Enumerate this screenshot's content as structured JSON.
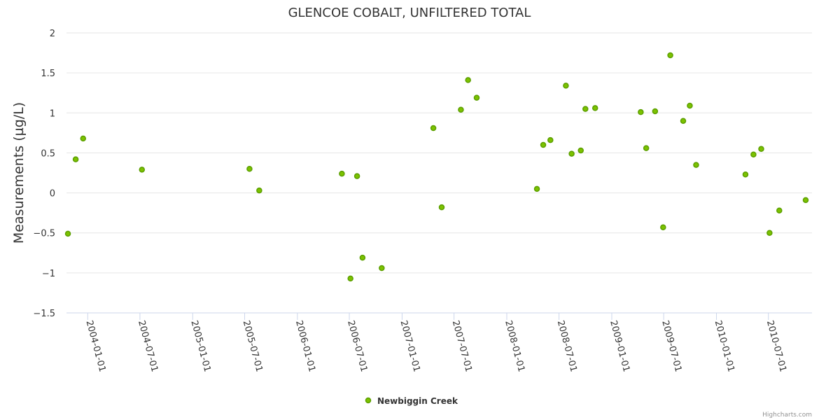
{
  "credits": "Highcharts.com",
  "chart_data": {
    "type": "scatter",
    "title": "GLENCOE COBALT, UNFILTERED TOTAL",
    "ylabel": "Measurements (µg/L)",
    "xlabel": "",
    "ylim": [
      -1.5,
      2
    ],
    "yticks": [
      -1.5,
      -1,
      -0.5,
      0,
      0.5,
      1,
      1.5,
      2
    ],
    "ytick_labels": [
      "−1.5",
      "−1",
      "−0.5",
      "0",
      "0.5",
      "1",
      "1.5",
      "2"
    ],
    "xlim": [
      "2003-10-19",
      "2010-11-30"
    ],
    "xticks": [
      "2004-01-01",
      "2004-07-01",
      "2005-01-01",
      "2005-07-01",
      "2006-01-01",
      "2006-07-01",
      "2007-01-01",
      "2007-07-01",
      "2008-01-01",
      "2008-07-01",
      "2009-01-01",
      "2009-07-01",
      "2010-01-01",
      "2010-07-01"
    ],
    "grid": true,
    "legend_position": "bottom-center",
    "marker_color": "#5b9e00",
    "marker_fill": "#7cc200",
    "series": [
      {
        "name": "Newbiggin Creek",
        "points": [
          {
            "x": "2003-10-24",
            "y": -0.51
          },
          {
            "x": "2003-11-20",
            "y": 0.42
          },
          {
            "x": "2003-12-16",
            "y": 0.68
          },
          {
            "x": "2004-07-08",
            "y": 0.29
          },
          {
            "x": "2005-07-18",
            "y": 0.3
          },
          {
            "x": "2005-08-21",
            "y": 0.03
          },
          {
            "x": "2006-06-05",
            "y": 0.24
          },
          {
            "x": "2006-07-05",
            "y": -1.07
          },
          {
            "x": "2006-07-28",
            "y": 0.21
          },
          {
            "x": "2006-08-16",
            "y": -0.81
          },
          {
            "x": "2006-10-22",
            "y": -0.94
          },
          {
            "x": "2007-04-20",
            "y": 0.81
          },
          {
            "x": "2007-05-19",
            "y": -0.18
          },
          {
            "x": "2007-07-25",
            "y": 1.04
          },
          {
            "x": "2007-08-19",
            "y": 1.41
          },
          {
            "x": "2007-09-18",
            "y": 1.19
          },
          {
            "x": "2008-04-15",
            "y": 0.05
          },
          {
            "x": "2008-05-07",
            "y": 0.6
          },
          {
            "x": "2008-06-01",
            "y": 0.66
          },
          {
            "x": "2008-07-25",
            "y": 1.34
          },
          {
            "x": "2008-08-14",
            "y": 0.49
          },
          {
            "x": "2008-09-15",
            "y": 0.53
          },
          {
            "x": "2008-10-01",
            "y": 1.05
          },
          {
            "x": "2008-11-04",
            "y": 1.06
          },
          {
            "x": "2009-04-12",
            "y": 1.01
          },
          {
            "x": "2009-05-01",
            "y": 0.56
          },
          {
            "x": "2009-06-01",
            "y": 1.02
          },
          {
            "x": "2009-06-29",
            "y": -0.43
          },
          {
            "x": "2009-07-24",
            "y": 1.72
          },
          {
            "x": "2009-09-07",
            "y": 0.9
          },
          {
            "x": "2009-09-30",
            "y": 1.09
          },
          {
            "x": "2009-10-22",
            "y": 0.35
          },
          {
            "x": "2010-04-12",
            "y": 0.23
          },
          {
            "x": "2010-05-10",
            "y": 0.48
          },
          {
            "x": "2010-06-06",
            "y": 0.55
          },
          {
            "x": "2010-07-05",
            "y": -0.5
          },
          {
            "x": "2010-08-08",
            "y": -0.22
          },
          {
            "x": "2010-11-08",
            "y": -0.09
          }
        ]
      }
    ]
  }
}
